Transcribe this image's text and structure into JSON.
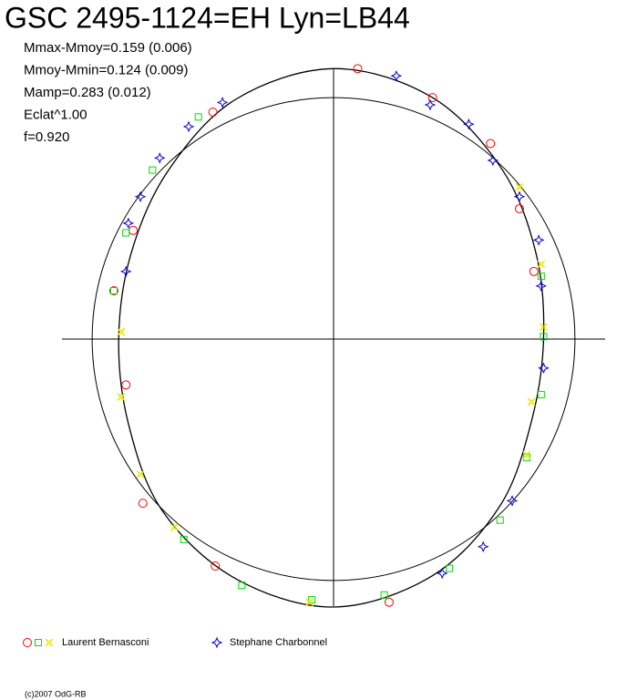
{
  "chart_data": {
    "type": "polar",
    "title": "GSC 2495-1124=EH Lyn=LB44",
    "annotations": [
      "Mmax-Mmoy=0.159 (0.006)",
      "Mmoy-Mmin=0.124 (0.009)",
      "Mamp=0.283 (0.012)",
      "Eclat^1.00",
      "f=0.920"
    ],
    "footer": "(c)2007 OdG-RB",
    "xlim": [
      -1.125,
      1.125
    ],
    "ylim": [
      -1.106,
      1.117
    ],
    "circle_radius": 1,
    "fit": {
      "color": "#000000",
      "x": [
        0,
        0.41,
        0.7,
        0.84,
        0.87,
        0.82,
        0.69,
        0.41,
        0,
        -0.41,
        -0.71,
        -0.85,
        -0.89,
        -0.84,
        -0.69,
        -0.41
      ],
      "y": [
        1.12,
        1.0,
        0.7,
        0.35,
        0,
        -0.34,
        -0.69,
        -0.98,
        -1.11,
        -0.99,
        -0.71,
        -0.35,
        0,
        0.35,
        0.69,
        0.99
      ]
    },
    "series": [
      {
        "name": "Laurent Bernasconi",
        "markers": [
          {
            "shape": "circle",
            "color": "#ff0000",
            "x": [
              0.1,
              0.41,
              0.65,
              0.77,
              0.83,
              -0.86,
              -0.79,
              -0.49,
              0.23,
              -0.83,
              -0.91,
              -0.5
            ],
            "y": [
              1.12,
              1.0,
              0.81,
              0.54,
              0.28,
              -0.19,
              -0.68,
              -0.94,
              -1.09,
              0.45,
              0.2,
              0.94
            ]
          },
          {
            "shape": "square",
            "color": "#00dd00",
            "x": [
              -0.56,
              -0.75,
              -0.86,
              -0.91,
              0.86,
              0.87,
              0.86,
              0.8,
              0.69,
              0.48,
              0.21,
              -0.09,
              -0.38,
              -0.62
            ],
            "y": [
              0.92,
              0.7,
              0.44,
              0.2,
              0.26,
              0.01,
              -0.23,
              -0.49,
              -0.75,
              -0.95,
              -1.06,
              -1.08,
              -1.02,
              -0.83
            ]
          },
          {
            "shape": "star",
            "color": "#e8e800",
            "x": [
              0.86,
              0.87,
              0.8,
              0.82,
              -0.8,
              -0.66,
              -0.1,
              -0.88,
              -0.88,
              0.77
            ],
            "y": [
              0.31,
              0.05,
              -0.48,
              -0.26,
              -0.56,
              -0.78,
              -1.09,
              0.03,
              -0.24,
              0.63
            ]
          }
        ]
      },
      {
        "name": "Stephane Charbonnel",
        "markers": [
          {
            "shape": "cross",
            "color": "#0000cc",
            "x": [
              0.26,
              0.4,
              0.56,
              0.66,
              0.77,
              0.85,
              0.86,
              0.87,
              0.74,
              0.62,
              0.45,
              -0.6,
              -0.72,
              -0.8,
              -0.85,
              -0.86,
              -0.46
            ],
            "y": [
              1.09,
              0.97,
              0.89,
              0.74,
              0.59,
              0.41,
              0.22,
              -0.12,
              -0.67,
              -0.86,
              -0.97,
              0.88,
              0.75,
              0.59,
              0.48,
              0.28,
              0.98
            ]
          }
        ]
      }
    ]
  }
}
